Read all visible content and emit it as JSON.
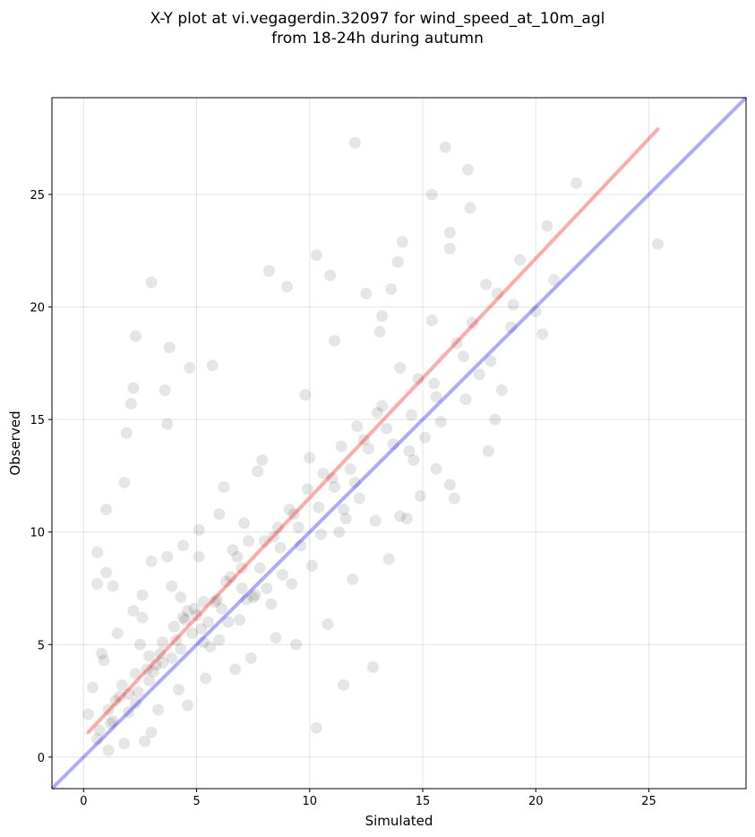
{
  "chart_data": {
    "type": "scatter",
    "title": "X-Y plot at vi.vegagerdin.32097 for wind_speed_at_10m_agl",
    "subtitle": "from 18-24h during autumn",
    "xlabel": "Simulated",
    "ylabel": "Observed",
    "xlim": [
      -1.4,
      29.3
    ],
    "ylim": [
      -1.4,
      29.3
    ],
    "x_ticks": [
      0,
      5,
      10,
      15,
      20,
      25
    ],
    "y_ticks": [
      0,
      5,
      10,
      15,
      20,
      25
    ],
    "grid": true,
    "point_color": "#000000",
    "point_alpha": 0.1,
    "reference_line": {
      "x": [
        -1.4,
        29.3
      ],
      "y": [
        -1.4,
        29.3
      ],
      "color": "#0000ff",
      "alpha": 0.33
    },
    "fit_line": {
      "x": [
        0.2,
        25.4
      ],
      "y": [
        1.1,
        27.9
      ],
      "color": "#ff0000",
      "alpha": 0.33
    },
    "points": {
      "x": [
        3.0,
        1.0,
        12.0,
        16.0,
        17.0,
        21.8,
        25.4,
        20.5,
        20.8,
        19.3,
        20.0,
        18.5,
        18.2,
        17.9,
        17.8,
        16.2,
        15.5,
        14.9,
        14.3,
        14.0,
        12.8,
        11.5,
        10.3,
        2.3,
        2.2,
        2.1,
        1.9,
        3.8,
        3.6,
        4.7,
        5.7,
        3.7,
        1.8,
        0.6,
        0.6,
        1.0,
        1.3,
        10.3,
        10.9,
        12.5,
        13.2,
        17.1,
        16.2,
        15.4,
        14.1,
        13.9,
        13.6,
        13.1,
        11.1,
        9.8,
        9.0,
        8.2,
        7.9,
        7.7,
        6.2,
        6.0,
        5.1,
        4.4,
        3.7,
        3.0,
        2.6,
        2.2,
        1.5,
        0.9,
        0.4,
        0.2,
        0.6,
        1.1,
        2.7,
        11.5,
        12.9,
        15.6,
        16.4,
        16.8,
        17.2,
        18.9,
        18.3,
        16.2,
        15.4,
        14.0,
        13.2,
        12.1,
        11.4,
        10.6,
        9.9,
        9.1,
        8.6,
        8.0,
        7.0,
        6.3,
        5.3,
        4.4,
        3.5,
        2.9,
        2.3,
        1.6,
        1.1,
        0.7,
        1.3,
        2.4,
        3.1,
        4.3,
        5.2,
        6.1,
        7.0,
        7.8,
        8.7,
        9.5,
        10.4,
        11.1,
        11.8,
        12.6,
        13.4,
        14.5,
        15.6,
        4.8,
        4.5,
        5.5,
        4.1,
        3.9,
        5.9,
        6.5,
        2.8,
        3.4,
        4.9,
        5.3,
        6.8,
        7.3,
        7.6,
        8.4,
        9.3,
        10.0,
        11.0,
        12.4,
        13.0,
        14.8,
        16.5,
        19.0,
        2.0,
        1.7,
        2.5,
        3.2,
        4.0,
        4.6,
        5.0,
        5.6,
        6.4,
        7.2,
        8.1,
        8.8,
        9.6,
        10.5,
        11.6,
        12.2,
        13.7,
        14.6,
        15.1,
        17.5,
        0.8,
        1.4,
        2.9,
        3.3,
        4.2,
        6.7,
        7.4,
        8.5,
        9.4,
        10.8,
        11.9,
        13.5,
        1.2,
        2.0,
        3.5,
        4.6,
        5.4,
        6.0,
        6.9,
        7.5,
        8.3,
        9.2,
        10.1,
        11.3,
        12.0,
        14.4,
        15.8,
        16.9,
        18.0,
        20.3,
        2.6,
        3.9,
        5.1,
        6.6,
        7.1,
        4.3,
        5.8,
        3.0,
        1.8,
        2.3
      ],
      "y": [
        21.1,
        11.0,
        27.3,
        27.1,
        26.1,
        25.5,
        22.8,
        23.6,
        21.2,
        22.1,
        19.8,
        16.3,
        15.0,
        13.6,
        21.0,
        12.1,
        16.6,
        11.6,
        10.6,
        10.7,
        4.0,
        3.2,
        1.3,
        18.7,
        16.4,
        15.7,
        14.4,
        18.2,
        16.3,
        17.3,
        17.4,
        14.8,
        12.2,
        9.1,
        7.7,
        8.2,
        7.6,
        22.3,
        21.4,
        20.6,
        19.6,
        24.4,
        22.6,
        25.0,
        22.9,
        22.0,
        20.8,
        18.9,
        18.5,
        16.1,
        20.9,
        21.6,
        13.2,
        12.7,
        12.0,
        10.8,
        10.1,
        9.4,
        8.9,
        8.7,
        7.2,
        6.5,
        5.5,
        4.3,
        3.1,
        1.9,
        0.8,
        0.3,
        0.7,
        11.0,
        10.5,
        12.8,
        11.5,
        17.8,
        19.3,
        19.1,
        20.6,
        23.3,
        19.4,
        17.3,
        15.6,
        14.7,
        13.8,
        12.6,
        11.9,
        11.0,
        10.2,
        9.6,
        8.4,
        7.8,
        6.9,
        6.2,
        5.1,
        4.5,
        3.7,
        2.7,
        2.1,
        1.2,
        1.6,
        2.9,
        3.8,
        4.8,
        5.7,
        6.6,
        7.5,
        8.4,
        9.3,
        10.2,
        11.1,
        12.0,
        12.8,
        13.7,
        14.6,
        15.2,
        16.0,
        5.5,
        6.1,
        6.0,
        5.2,
        4.4,
        7.0,
        8.0,
        3.9,
        4.6,
        6.6,
        5.1,
        8.9,
        9.6,
        7.2,
        9.8,
        10.8,
        13.3,
        12.4,
        14.1,
        15.3,
        16.8,
        18.4,
        20.1,
        2.0,
        3.2,
        5.0,
        4.1,
        5.8,
        6.5,
        6.3,
        4.9,
        6.0,
        7.0,
        7.5,
        8.1,
        9.4,
        9.9,
        10.6,
        11.5,
        13.9,
        13.2,
        14.2,
        17.0,
        4.6,
        2.5,
        3.4,
        2.1,
        3.0,
        3.9,
        4.4,
        5.3,
        5.0,
        5.9,
        7.9,
        8.8,
        1.5,
        2.8,
        4.2,
        2.3,
        3.5,
        5.2,
        6.1,
        7.1,
        6.8,
        7.7,
        8.5,
        10.0,
        12.2,
        13.6,
        14.9,
        15.9,
        17.6,
        18.8,
        6.2,
        7.6,
        8.9,
        9.2,
        10.4,
        7.1,
        6.9,
        1.1,
        0.6,
        2.4
      ]
    }
  }
}
